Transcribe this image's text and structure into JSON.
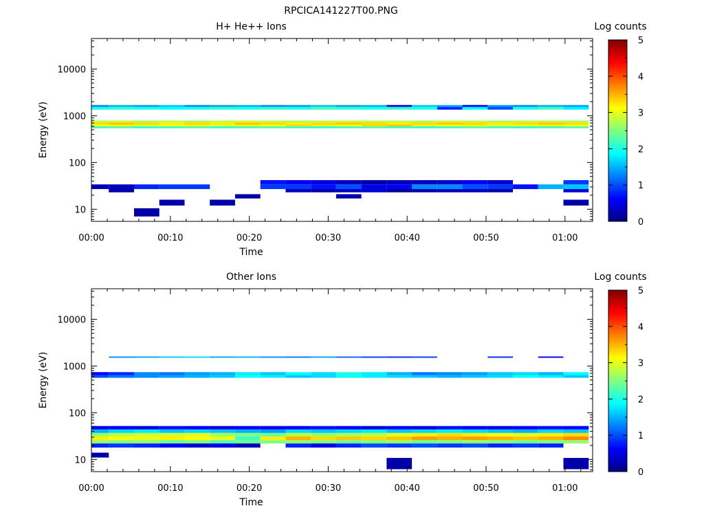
{
  "figure_title": "RPCICA141227T00.PNG",
  "colors": {
    "colormap": [
      "#000080",
      "#0000ff",
      "#0080ff",
      "#00ffff",
      "#80ff80",
      "#ffff00",
      "#ff8000",
      "#ff0000",
      "#800000"
    ]
  },
  "chart_data": [
    {
      "type": "heatmap",
      "title": "H+ He++ Ions",
      "xlabel": "Time",
      "ylabel": "Energy (eV)",
      "colorbar_label": "Log counts",
      "x_ticks": [
        "00:00",
        "00:10",
        "00:20",
        "00:30",
        "00:40",
        "00:50",
        "01:00"
      ],
      "x_tick_minutes": [
        0,
        10,
        20,
        30,
        40,
        50,
        60
      ],
      "xlim_minutes": [
        0,
        63.5
      ],
      "y_ticks": [
        "10",
        "100",
        "1000",
        "10000"
      ],
      "y_tick_values": [
        10,
        100,
        1000,
        10000
      ],
      "ylim": [
        5.5,
        45000
      ],
      "y_scale": "log",
      "colorbar_ticks": [
        "0",
        "1",
        "2",
        "3",
        "4",
        "5"
      ],
      "colorbar_range": [
        0,
        5
      ],
      "time_bins_minutes": [
        2.2,
        5.4,
        8.6,
        11.8,
        15.0,
        18.2,
        21.4,
        24.6,
        27.8,
        31.0,
        34.2,
        37.4,
        40.6,
        43.8,
        47.0,
        50.2,
        53.4,
        56.6,
        59.8,
        63.0
      ],
      "bands": [
        {
          "e_low": 590,
          "e_high": 650,
          "values": [
            3.1,
            3.2,
            3.0,
            3.1,
            3.2,
            3.0,
            3.2,
            3.1,
            3.3,
            3.2,
            3.1,
            3.3,
            3.4,
            3.2,
            3.1,
            3.2,
            3.0,
            3.1,
            3.2,
            3.1
          ]
        },
        {
          "e_low": 650,
          "e_high": 720,
          "values": [
            3.3,
            3.4,
            3.3,
            3.2,
            3.3,
            3.2,
            3.4,
            3.3,
            3.2,
            3.3,
            3.4,
            3.3,
            3.2,
            3.3,
            3.4,
            3.3,
            3.2,
            3.3,
            3.4,
            3.3
          ]
        },
        {
          "e_low": 720,
          "e_high": 790,
          "values": [
            2.8,
            2.9,
            2.7,
            2.8,
            2.7,
            2.8,
            2.9,
            2.8,
            2.7,
            2.8,
            2.9,
            2.8,
            2.8,
            2.7,
            2.9,
            2.8,
            2.7,
            2.8,
            2.8,
            2.7
          ]
        },
        {
          "e_low": 540,
          "e_high": 590,
          "values": [
            2.1,
            2.2,
            2.0,
            2.1,
            2.2,
            2.0,
            2.1,
            2.2,
            2.1,
            2.0,
            2.1,
            2.2,
            2.1,
            2.0,
            2.1,
            2.2,
            2.1,
            2.0,
            2.1,
            2.2
          ]
        },
        {
          "e_low": 1350,
          "e_high": 1550,
          "values": [
            2.0,
            2.1,
            2.0,
            1.9,
            2.0,
            2.1,
            2.0,
            2.1,
            2.0,
            2.2,
            2.1,
            2.0,
            2.1,
            2.0,
            0.8,
            1.9,
            1.0,
            2.0,
            2.2,
            1.8
          ]
        },
        {
          "e_low": 1550,
          "e_high": 1700,
          "values": [
            1.3,
            1.5,
            1.4,
            1.6,
            1.3,
            1.4,
            1.5,
            1.3,
            1.4,
            1.6,
            1.4,
            1.5,
            0.5,
            1.6,
            1.5,
            0.6,
            1.4,
            1.3,
            1.5,
            1.4
          ]
        },
        {
          "e_low": 27,
          "e_high": 34,
          "values": [
            0.3,
            0.3,
            0.8,
            0.9,
            0.9,
            null,
            null,
            0.9,
            0.9,
            0.7,
            1.0,
            0.5,
            0.6,
            1.3,
            1.3,
            1.0,
            0.9,
            0.7,
            1.5,
            1.6
          ]
        },
        {
          "e_low": 34,
          "e_high": 42,
          "values": [
            null,
            null,
            null,
            null,
            null,
            null,
            null,
            0.7,
            0.6,
            0.5,
            0.3,
            0.2,
            0.3,
            0.3,
            0.4,
            0.6,
            0.4,
            null,
            null,
            0.9
          ]
        },
        {
          "e_low": 23,
          "e_high": 27,
          "values": [
            null,
            0.2,
            null,
            null,
            null,
            null,
            null,
            null,
            0.3,
            0.2,
            0.3,
            0.4,
            0.1,
            0.2,
            0.3,
            0.3,
            0.2,
            null,
            null,
            0.4
          ]
        },
        {
          "e_low": 7,
          "e_high": 10.5,
          "values": [
            null,
            null,
            0.2,
            null,
            null,
            null,
            null,
            null,
            null,
            null,
            null,
            null,
            null,
            null,
            null,
            null,
            null,
            null,
            null,
            null
          ]
        },
        {
          "e_low": 12,
          "e_high": 16,
          "values": [
            null,
            null,
            null,
            0.2,
            null,
            0.2,
            null,
            null,
            null,
            null,
            null,
            null,
            null,
            null,
            null,
            null,
            null,
            null,
            null,
            0.2
          ]
        },
        {
          "e_low": 17,
          "e_high": 21,
          "values": [
            null,
            null,
            null,
            null,
            null,
            null,
            0.2,
            null,
            null,
            null,
            0.2,
            null,
            null,
            null,
            null,
            null,
            null,
            null,
            null,
            null
          ]
        }
      ]
    },
    {
      "type": "heatmap",
      "title": "Other Ions",
      "xlabel": "Time",
      "ylabel": "Energy (eV)",
      "colorbar_label": "Log counts",
      "x_ticks": [
        "00:00",
        "00:10",
        "00:20",
        "00:30",
        "00:40",
        "00:50",
        "01:00"
      ],
      "x_tick_minutes": [
        0,
        10,
        20,
        30,
        40,
        50,
        60
      ],
      "xlim_minutes": [
        0,
        63.5
      ],
      "y_ticks": [
        "10",
        "100",
        "1000",
        "10000"
      ],
      "y_tick_values": [
        10,
        100,
        1000,
        10000
      ],
      "ylim": [
        5.5,
        45000
      ],
      "y_scale": "log",
      "colorbar_ticks": [
        "0",
        "1",
        "2",
        "3",
        "4",
        "5"
      ],
      "colorbar_range": [
        0,
        5
      ],
      "time_bins_minutes": [
        2.2,
        5.4,
        8.6,
        11.8,
        15.0,
        18.2,
        21.4,
        24.6,
        27.8,
        31.0,
        34.2,
        37.4,
        40.6,
        43.8,
        47.0,
        50.2,
        53.4,
        56.6,
        59.8,
        63.0
      ],
      "bands": [
        {
          "e_low": 22,
          "e_high": 26,
          "values": [
            2.6,
            2.5,
            2.6,
            2.4,
            2.5,
            2.3,
            2.4,
            2.5,
            2.6,
            2.5,
            2.4,
            2.5,
            2.6,
            2.4,
            2.5,
            2.6,
            2.5,
            2.4,
            2.5,
            2.6
          ]
        },
        {
          "e_low": 26,
          "e_high": 31,
          "values": [
            3.2,
            3.1,
            3.0,
            3.2,
            3.1,
            3.0,
            2.2,
            3.2,
            3.5,
            3.3,
            3.4,
            3.3,
            3.4,
            3.6,
            3.5,
            3.6,
            3.5,
            3.4,
            3.5,
            3.7
          ]
        },
        {
          "e_low": 31,
          "e_high": 37,
          "values": [
            2.6,
            2.8,
            2.9,
            2.9,
            3.0,
            2.7,
            2.5,
            2.4,
            2.8,
            2.6,
            2.7,
            2.8,
            3.0,
            3.2,
            3.3,
            3.2,
            3.1,
            3.0,
            3.2,
            3.3
          ]
        },
        {
          "e_low": 37,
          "e_high": 44,
          "values": [
            1.5,
            1.7,
            1.8,
            1.6,
            1.7,
            1.6,
            1.5,
            1.4,
            1.7,
            1.6,
            1.7,
            1.8,
            1.6,
            1.7,
            1.8,
            1.7,
            1.6,
            1.5,
            1.7,
            1.6
          ]
        },
        {
          "e_low": 44,
          "e_high": 52,
          "values": [
            0.5,
            0.6,
            0.5,
            0.7,
            0.6,
            0.5,
            0.6,
            0.5,
            0.6,
            0.7,
            0.6,
            0.5,
            0.6,
            0.5,
            0.7,
            0.6,
            0.5,
            0.6,
            0.7,
            0.6
          ]
        },
        {
          "e_low": 18,
          "e_high": 22,
          "values": [
            0.8,
            0.9,
            0.8,
            0.6,
            0.4,
            0.5,
            0.3,
            null,
            0.8,
            0.5,
            0.8,
            1.0,
            0.9,
            1.0,
            0.9,
            1.0,
            0.8,
            0.9,
            0.8,
            null
          ]
        },
        {
          "e_low": 11,
          "e_high": 14,
          "values": [
            0.2,
            null,
            null,
            null,
            null,
            null,
            null,
            null,
            null,
            null,
            null,
            null,
            null,
            null,
            null,
            null,
            null,
            null,
            null,
            null
          ]
        },
        {
          "e_low": 6.2,
          "e_high": 10.8,
          "values": [
            null,
            null,
            null,
            null,
            null,
            null,
            null,
            null,
            null,
            null,
            null,
            null,
            0.2,
            null,
            null,
            null,
            null,
            null,
            null,
            0.2
          ]
        },
        {
          "e_low": 560,
          "e_high": 640,
          "values": [
            1.0,
            1.2,
            1.3,
            1.4,
            1.5,
            1.6,
            1.9,
            1.8,
            1.6,
            1.7,
            1.9,
            1.8,
            1.7,
            1.6,
            1.5,
            1.6,
            1.7,
            1.9,
            1.8,
            1.6
          ]
        },
        {
          "e_low": 640,
          "e_high": 740,
          "values": [
            0.6,
            0.8,
            1.3,
            1.2,
            1.4,
            1.5,
            1.8,
            1.6,
            1.9,
            1.7,
            2.0,
            1.8,
            1.5,
            1.2,
            1.3,
            1.4,
            1.6,
            1.7,
            1.5,
            1.9
          ]
        },
        {
          "e_low": 1500,
          "e_high": 1600,
          "values": [
            null,
            1.3,
            1.4,
            1.6,
            1.7,
            1.4,
            1.5,
            1.3,
            1.2,
            1.4,
            1.1,
            0.9,
            0.8,
            0.9,
            null,
            null,
            0.8,
            null,
            0.6,
            null
          ]
        }
      ]
    }
  ]
}
